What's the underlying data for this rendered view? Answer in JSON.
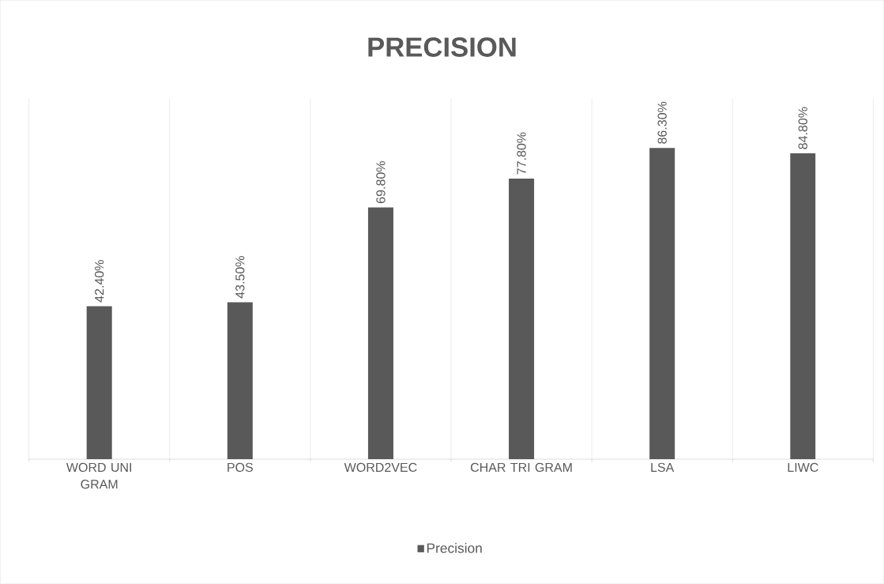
{
  "chart_data": {
    "type": "bar",
    "title": "PRECISION",
    "categories": [
      "WORD UNI GRAM",
      "POS",
      "WORD2VEC",
      "CHAR TRI GRAM",
      "LSA",
      "LIWC"
    ],
    "series": [
      {
        "name": "Precision",
        "color": "#595959",
        "values": [
          42.4,
          43.5,
          69.8,
          77.8,
          86.3,
          84.8
        ],
        "value_labels": [
          "42.40%",
          "43.50%",
          "69.80%",
          "77.80%",
          "86.30%",
          "84.80%"
        ]
      }
    ],
    "ylim": [
      0,
      100
    ],
    "tick_labels": "x",
    "grid": "x",
    "legend": "bottom"
  }
}
